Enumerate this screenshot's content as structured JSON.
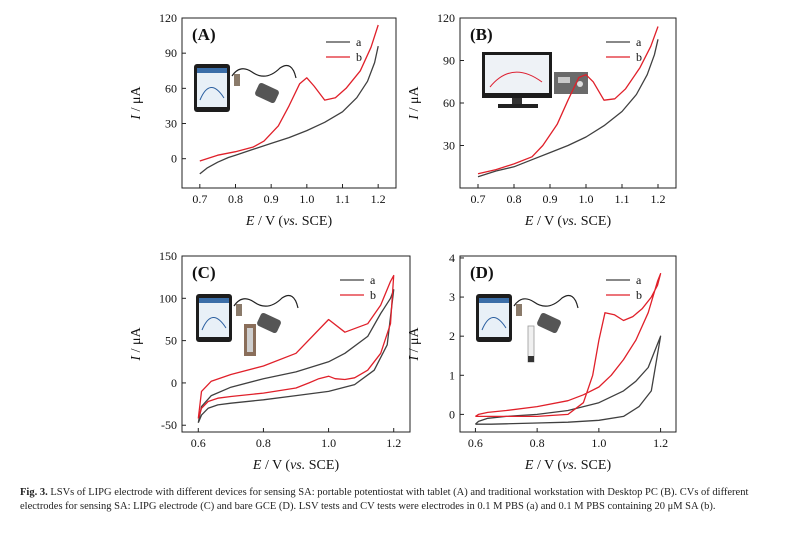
{
  "chart_data": [
    {
      "type": "line",
      "panel_label": "(A)",
      "xlabel_E": "E",
      "xlabel_rest": " / V (",
      "xlabel_vs": "vs.",
      "xlabel_tail": " SCE)",
      "ylabel_I": "I",
      "ylabel_rest": " / μA",
      "xlim": [
        0.65,
        1.25
      ],
      "ylim": [
        -25,
        120
      ],
      "xticks": [
        "0.7",
        "0.8",
        "0.9",
        "1.0",
        "1.1",
        "1.2"
      ],
      "yticks": [
        "0",
        "30",
        "60",
        "90",
        "120"
      ],
      "legend_position": "top-right",
      "series": [
        {
          "name": "a",
          "color": "#404040",
          "x": [
            0.7,
            0.72,
            0.75,
            0.78,
            0.8,
            0.85,
            0.9,
            0.95,
            1.0,
            1.05,
            1.1,
            1.14,
            1.17,
            1.19,
            1.2
          ],
          "y": [
            -13,
            -8,
            -3,
            1,
            3,
            8,
            13,
            18,
            24,
            31,
            40,
            52,
            66,
            82,
            96
          ]
        },
        {
          "name": "b",
          "color": "#e0202a",
          "x": [
            0.7,
            0.75,
            0.8,
            0.85,
            0.88,
            0.92,
            0.95,
            0.98,
            1.0,
            1.02,
            1.05,
            1.08,
            1.11,
            1.15,
            1.18,
            1.2
          ],
          "y": [
            -2,
            3,
            6,
            10,
            15,
            28,
            45,
            64,
            69,
            62,
            50,
            52,
            60,
            75,
            95,
            114
          ]
        }
      ]
    },
    {
      "type": "line",
      "panel_label": "(B)",
      "xlabel_E": "E",
      "xlabel_rest": " / V (",
      "xlabel_vs": "vs.",
      "xlabel_tail": " SCE)",
      "ylabel_I": "I",
      "ylabel_rest": " / μA",
      "xlim": [
        0.65,
        1.25
      ],
      "ylim": [
        0,
        120
      ],
      "xticks": [
        "0.7",
        "0.8",
        "0.9",
        "1.0",
        "1.1",
        "1.2"
      ],
      "yticks": [
        "30",
        "60",
        "90",
        "120"
      ],
      "legend_position": "top-right",
      "series": [
        {
          "name": "a",
          "color": "#404040",
          "x": [
            0.7,
            0.75,
            0.8,
            0.85,
            0.9,
            0.95,
            1.0,
            1.05,
            1.1,
            1.14,
            1.17,
            1.19,
            1.2
          ],
          "y": [
            8,
            12,
            15,
            20,
            25,
            30,
            36,
            44,
            54,
            66,
            80,
            94,
            105
          ]
        },
        {
          "name": "b",
          "color": "#e0202a",
          "x": [
            0.7,
            0.75,
            0.8,
            0.85,
            0.88,
            0.92,
            0.95,
            0.98,
            1.0,
            1.02,
            1.05,
            1.08,
            1.11,
            1.15,
            1.18,
            1.2
          ],
          "y": [
            10,
            13,
            17,
            22,
            30,
            45,
            62,
            78,
            80,
            75,
            62,
            63,
            70,
            85,
            100,
            114
          ]
        }
      ]
    },
    {
      "type": "line",
      "panel_label": "(C)",
      "xlabel_E": "E",
      "xlabel_rest": " / V (",
      "xlabel_vs": "vs.",
      "xlabel_tail": " SCE)",
      "ylabel_I": "I",
      "ylabel_rest": " / μA",
      "xlim": [
        0.55,
        1.25
      ],
      "ylim": [
        -58,
        150
      ],
      "xticks": [
        "0.6",
        "0.8",
        "1.0",
        "1.2"
      ],
      "yticks": [
        "-50",
        "0",
        "50",
        "100",
        "150"
      ],
      "legend_position": "top-right",
      "series": [
        {
          "name": "a",
          "color": "#404040",
          "x": [
            0.6,
            0.61,
            0.63,
            0.66,
            0.7,
            0.8,
            0.9,
            1.0,
            1.08,
            1.14,
            1.18,
            1.2,
            1.19,
            1.16,
            1.12,
            1.05,
            1.0,
            0.9,
            0.8,
            0.7,
            0.64,
            0.61,
            0.6
          ],
          "y": [
            -47,
            -38,
            -30,
            -26,
            -24,
            -20,
            -15,
            -10,
            -2,
            15,
            45,
            110,
            100,
            82,
            55,
            35,
            25,
            13,
            5,
            -5,
            -15,
            -28,
            -47
          ]
        },
        {
          "name": "b",
          "color": "#e0202a",
          "x": [
            0.6,
            0.61,
            0.63,
            0.66,
            0.7,
            0.8,
            0.9,
            0.94,
            0.97,
            1.0,
            1.02,
            1.05,
            1.08,
            1.12,
            1.16,
            1.19,
            1.2,
            1.19,
            1.16,
            1.12,
            1.05,
            1.0,
            0.9,
            0.8,
            0.7,
            0.64,
            0.61,
            0.6
          ],
          "y": [
            -42,
            -30,
            -22,
            -18,
            -16,
            -12,
            -6,
            0,
            5,
            8,
            5,
            4,
            6,
            15,
            35,
            70,
            127,
            120,
            92,
            70,
            60,
            75,
            35,
            20,
            10,
            2,
            -10,
            -42
          ]
        }
      ]
    },
    {
      "type": "line",
      "panel_label": "(D)",
      "xlabel_E": "E",
      "xlabel_rest": " / V (",
      "xlabel_vs": "vs.",
      "xlabel_tail": " SCE)",
      "ylabel_I": "I",
      "ylabel_rest": " / μA",
      "xlim": [
        0.55,
        1.25
      ],
      "ylim": [
        -0.45,
        4.05
      ],
      "xticks": [
        "0.6",
        "0.8",
        "1.0",
        "1.2"
      ],
      "yticks": [
        "0",
        "1",
        "2",
        "3",
        "4"
      ],
      "legend_position": "top-right",
      "series": [
        {
          "name": "a",
          "color": "#404040",
          "x": [
            0.6,
            0.65,
            0.7,
            0.8,
            0.9,
            1.0,
            1.08,
            1.13,
            1.17,
            1.2,
            1.19,
            1.16,
            1.12,
            1.08,
            1.0,
            0.9,
            0.8,
            0.7,
            0.64,
            0.61,
            0.6
          ],
          "y": [
            -0.25,
            -0.25,
            -0.24,
            -0.22,
            -0.2,
            -0.15,
            -0.05,
            0.2,
            0.6,
            2.0,
            1.8,
            1.2,
            0.85,
            0.6,
            0.3,
            0.1,
            0.0,
            -0.05,
            -0.1,
            -0.18,
            -0.25
          ]
        },
        {
          "name": "b",
          "color": "#e0202a",
          "x": [
            0.6,
            0.65,
            0.7,
            0.8,
            0.9,
            0.95,
            0.98,
            1.0,
            1.02,
            1.05,
            1.08,
            1.11,
            1.14,
            1.17,
            1.19,
            1.2,
            1.19,
            1.16,
            1.12,
            1.08,
            1.04,
            1.0,
            0.95,
            0.9,
            0.8,
            0.7,
            0.64,
            0.61,
            0.6
          ],
          "y": [
            -0.05,
            -0.05,
            -0.05,
            -0.05,
            0.0,
            0.3,
            1.0,
            1.9,
            2.6,
            2.55,
            2.4,
            2.5,
            2.7,
            3.0,
            3.3,
            3.6,
            3.4,
            2.6,
            1.9,
            1.4,
            1.0,
            0.7,
            0.5,
            0.35,
            0.2,
            0.1,
            0.05,
            0.0,
            -0.05
          ]
        }
      ]
    }
  ],
  "caption": {
    "label": "Fig. 3.",
    "text": " LSVs of LIPG electrode with different devices for sensing SA: portable potentiostat with tablet (A) and traditional workstation with Desktop PC (B). CVs of different electrodes for sensing SA: LIPG electrode (C) and bare GCE (D). LSV tests and CV tests were electrodes in 0.1 M PBS (a) and 0.1 M PBS containing 20 μM SA (b)."
  }
}
